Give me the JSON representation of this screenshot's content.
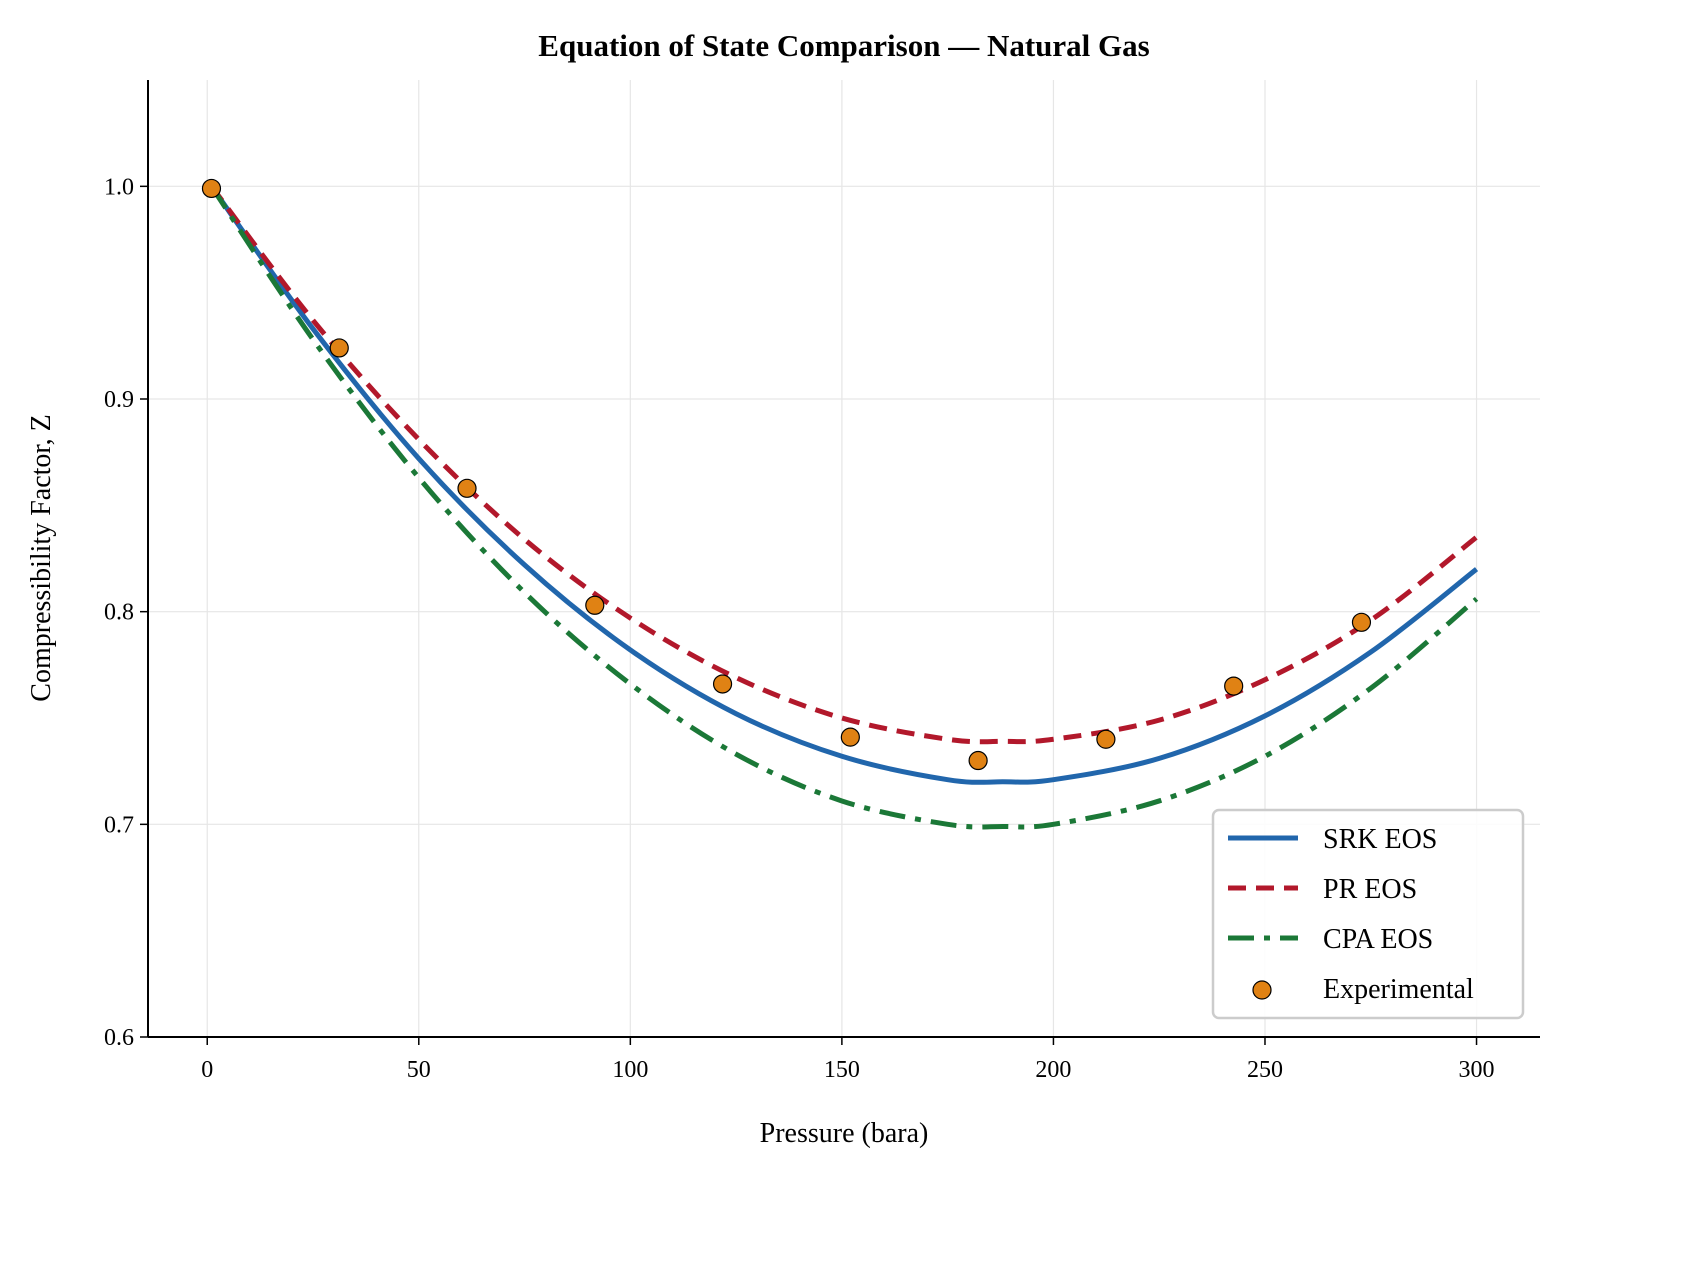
{
  "chart_data": {
    "type": "line",
    "title": "Equation of State Comparison — Natural Gas",
    "xlabel": "Pressure (bara)",
    "ylabel": "Compressibility Factor, Z",
    "xlim": [
      -14,
      315
    ],
    "ylim": [
      0.6,
      1.05
    ],
    "xticks": [
      0,
      50,
      100,
      150,
      200,
      250,
      300
    ],
    "yticks": [
      0.6,
      0.7,
      0.8,
      0.9,
      1.0
    ],
    "ytick_labels": [
      "0.6",
      "0.7",
      "0.8",
      "0.9",
      "1.0"
    ],
    "grid": true,
    "legend_position": "lower-right",
    "series": [
      {
        "name": "SRK EOS",
        "style": "solid",
        "color": "#2166ac",
        "x": [
          1,
          25,
          50,
          75,
          100,
          125,
          150,
          175,
          188,
          200,
          225,
          250,
          275,
          300
        ],
        "y": [
          1.0,
          0.933,
          0.872,
          0.822,
          0.782,
          0.752,
          0.732,
          0.721,
          0.72,
          0.721,
          0.731,
          0.751,
          0.781,
          0.82
        ]
      },
      {
        "name": "PR EOS",
        "style": "dashed",
        "color": "#b2182b",
        "x": [
          1,
          25,
          50,
          75,
          100,
          125,
          150,
          175,
          188,
          200,
          225,
          250,
          275,
          300
        ],
        "y": [
          1.0,
          0.937,
          0.881,
          0.834,
          0.797,
          0.769,
          0.75,
          0.74,
          0.739,
          0.74,
          0.749,
          0.768,
          0.796,
          0.835
        ]
      },
      {
        "name": "CPA EOS",
        "style": "dashdot",
        "color": "#1b7837",
        "x": [
          1,
          25,
          50,
          75,
          100,
          125,
          150,
          175,
          188,
          200,
          225,
          250,
          275,
          300
        ],
        "y": [
          1.0,
          0.928,
          0.863,
          0.809,
          0.766,
          0.733,
          0.711,
          0.7,
          0.699,
          0.7,
          0.711,
          0.732,
          0.764,
          0.806
        ]
      },
      {
        "name": "Experimental",
        "style": "scatter",
        "color": "#e08214",
        "x": [
          1,
          31.2,
          61.4,
          91.6,
          121.8,
          152.0,
          182.2,
          212.4,
          242.6,
          272.8
        ],
        "y": [
          0.999,
          0.924,
          0.858,
          0.803,
          0.766,
          0.741,
          0.73,
          0.74,
          0.765,
          0.795
        ]
      }
    ]
  }
}
